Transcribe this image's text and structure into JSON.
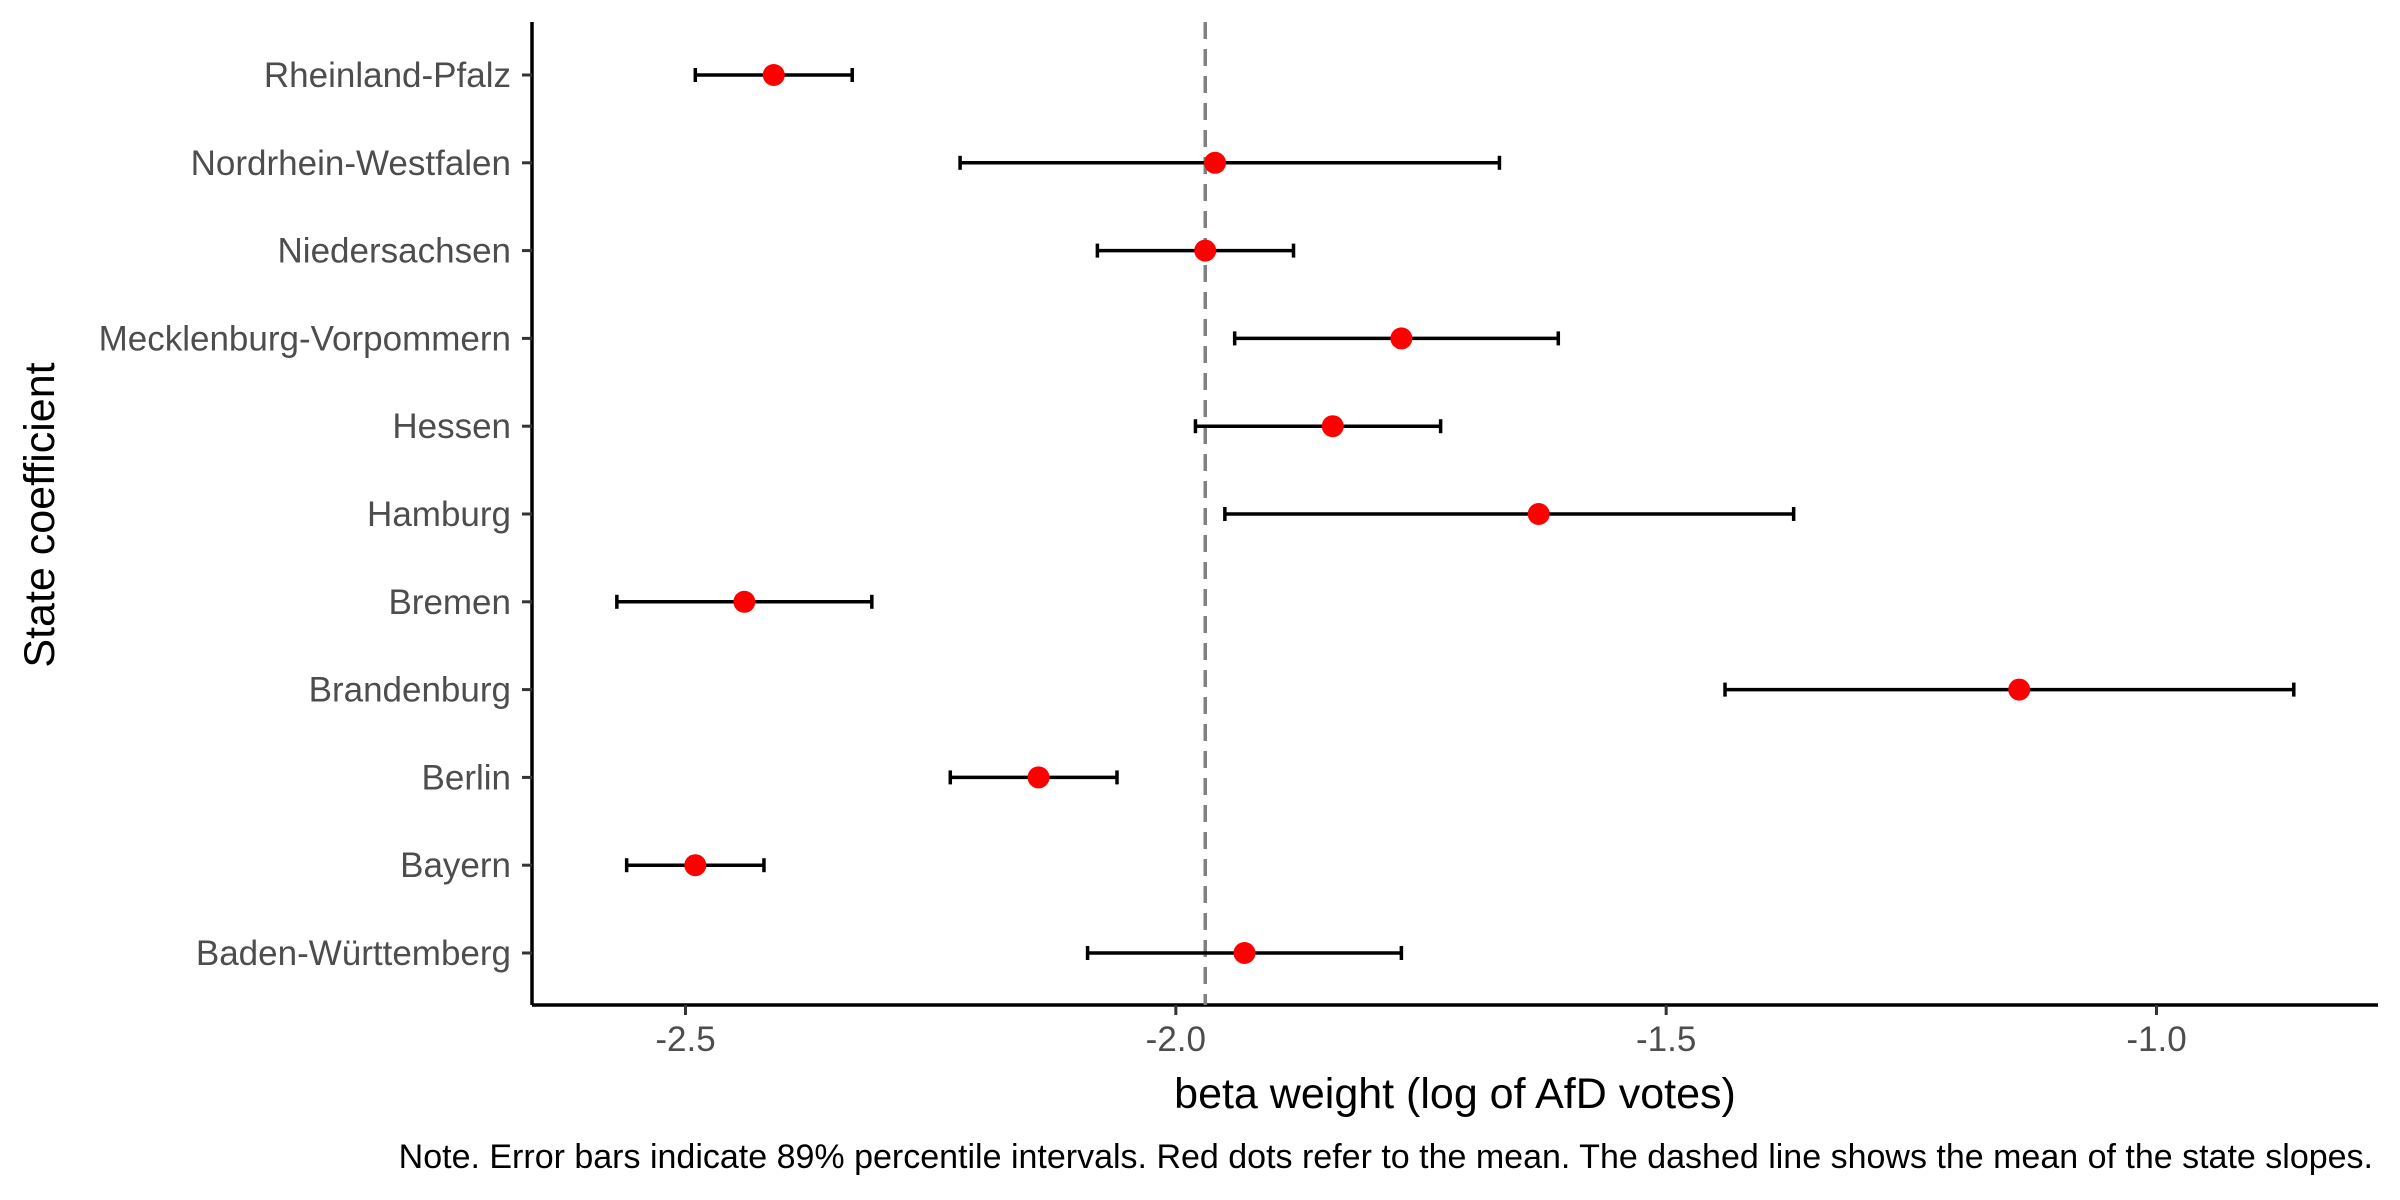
{
  "chart_data": {
    "type": "scatter",
    "subtype": "dot-and-whisker",
    "title": "",
    "xlabel": "beta weight (log of AfD votes)",
    "ylabel": "State coefficient",
    "xlim": [
      -2.65,
      -0.78
    ],
    "xticks": [
      -2.5,
      -2.0,
      -1.5,
      -1.0
    ],
    "xtick_labels": [
      "-2.5",
      "-2.0",
      "-1.5",
      "-1.0"
    ],
    "grid": false,
    "legend": "none",
    "reference_line": {
      "x": -1.97,
      "style": "dashed",
      "color": "#808080"
    },
    "categories": [
      "Baden-Württemberg",
      "Bayern",
      "Berlin",
      "Brandenburg",
      "Bremen",
      "Hamburg",
      "Hessen",
      "Mecklenburg-Vorpommern",
      "Niedersachsen",
      "Nordrhein-Westfalen",
      "Rheinland-Pfalz"
    ],
    "series": [
      {
        "mean": [
          -1.93,
          -2.49,
          -2.14,
          -1.14,
          -2.44,
          -1.63,
          -1.84,
          -1.77,
          -1.97,
          -1.96,
          -2.41
        ],
        "lower": [
          -2.09,
          -2.56,
          -2.23,
          -1.44,
          -2.57,
          -1.95,
          -1.98,
          -1.94,
          -2.08,
          -2.22,
          -2.49
        ],
        "upper": [
          -1.77,
          -2.42,
          -2.06,
          -0.86,
          -2.31,
          -1.37,
          -1.73,
          -1.61,
          -1.88,
          -1.67,
          -2.33
        ]
      }
    ],
    "point_color": "#ff0000",
    "errorbar_color": "#000000",
    "note": "Note. Error bars indicate 89% percentile intervals. Red dots refer to the mean. The dashed line shows the mean of the state slopes."
  }
}
